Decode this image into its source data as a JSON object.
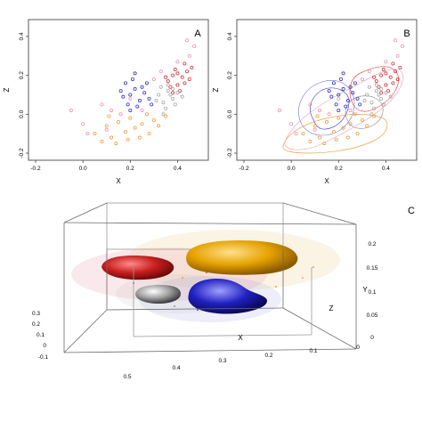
{
  "colors": {
    "red": "#d9353a",
    "blue": "#3535c8",
    "gray": "#a9a9a9",
    "orange": "#f0a040",
    "pink": "#e39ab8",
    "axis": "#555555",
    "box": "#8a8a8a"
  },
  "chart_data": [
    {
      "type": "scatter",
      "panel_label": "A",
      "xlabel": "X",
      "ylabel": "Z",
      "xlim": [
        -0.2,
        0.5
      ],
      "ylim": [
        -0.2,
        0.45
      ],
      "xticks": [
        "-0.2",
        "0.0",
        "0.2",
        "0.4"
      ],
      "yticks": [
        "-0.2",
        "0.0",
        "0.2",
        "0.4"
      ],
      "xtick_values": [
        -0.2,
        0.0,
        0.2,
        0.4
      ],
      "ytick_values": [
        -0.2,
        0.0,
        0.2,
        0.4
      ],
      "grid": false,
      "series": [
        {
          "color": "red",
          "points": [
            [
              0.36,
              0.17
            ],
            [
              0.38,
              0.2
            ],
            [
              0.4,
              0.15
            ],
            [
              0.42,
              0.19
            ],
            [
              0.44,
              0.22
            ],
            [
              0.39,
              0.23
            ],
            [
              0.41,
              0.12
            ],
            [
              0.43,
              0.16
            ],
            [
              0.45,
              0.18
            ],
            [
              0.37,
              0.14
            ],
            [
              0.46,
              0.24
            ],
            [
              0.4,
              0.21
            ],
            [
              0.35,
              0.19
            ],
            [
              0.43,
              0.26
            ],
            [
              0.38,
              0.11
            ]
          ]
        },
        {
          "color": "blue",
          "points": [
            [
              0.18,
              0.16
            ],
            [
              0.2,
              0.1
            ],
            [
              0.22,
              0.13
            ],
            [
              0.24,
              0.07
            ],
            [
              0.19,
              0.05
            ],
            [
              0.26,
              0.11
            ],
            [
              0.21,
              0.18
            ],
            [
              0.23,
              0.04
            ],
            [
              0.25,
              0.14
            ],
            [
              0.17,
              0.09
            ],
            [
              0.28,
              0.08
            ],
            [
              0.2,
              0.02
            ],
            [
              0.27,
              0.16
            ],
            [
              0.22,
              0.21
            ],
            [
              0.29,
              0.05
            ],
            [
              0.16,
              0.12
            ]
          ]
        },
        {
          "color": "gray",
          "points": [
            [
              0.32,
              0.1
            ],
            [
              0.34,
              0.06
            ],
            [
              0.36,
              0.12
            ],
            [
              0.38,
              0.08
            ],
            [
              0.33,
              0.14
            ],
            [
              0.35,
              0.03
            ],
            [
              0.37,
              0.1
            ],
            [
              0.39,
              0.05
            ],
            [
              0.31,
              0.07
            ],
            [
              0.36,
              0.15
            ],
            [
              0.4,
              0.11
            ],
            [
              0.34,
              0.0
            ],
            [
              0.38,
              0.13
            ],
            [
              0.42,
              0.09
            ]
          ]
        },
        {
          "color": "orange",
          "points": [
            [
              0.05,
              -0.1
            ],
            [
              0.1,
              -0.06
            ],
            [
              0.12,
              -0.12
            ],
            [
              0.15,
              -0.04
            ],
            [
              0.18,
              -0.09
            ],
            [
              0.2,
              -0.02
            ],
            [
              0.22,
              -0.07
            ],
            [
              0.25,
              -0.05
            ],
            [
              0.28,
              -0.1
            ],
            [
              0.3,
              -0.03
            ],
            [
              0.08,
              -0.14
            ],
            [
              0.14,
              -0.15
            ],
            [
              0.24,
              -0.12
            ],
            [
              0.32,
              -0.06
            ],
            [
              0.35,
              -0.01
            ],
            [
              0.11,
              -0.01
            ],
            [
              0.19,
              -0.13
            ],
            [
              0.27,
              0.0
            ]
          ]
        },
        {
          "color": "pink",
          "points": [
            [
              -0.05,
              0.02
            ],
            [
              0.0,
              -0.05
            ],
            [
              0.08,
              0.05
            ],
            [
              0.12,
              0.02
            ],
            [
              0.16,
              0.0
            ],
            [
              0.3,
              0.18
            ],
            [
              0.33,
              0.22
            ],
            [
              0.45,
              0.3
            ],
            [
              0.47,
              0.35
            ],
            [
              0.44,
              0.38
            ],
            [
              0.1,
              -0.08
            ],
            [
              0.25,
              0.02
            ],
            [
              0.4,
              0.27
            ],
            [
              0.02,
              -0.1
            ],
            [
              0.2,
              0.08
            ]
          ]
        }
      ]
    },
    {
      "type": "scatter",
      "panel_label": "B",
      "xlabel": "X",
      "ylabel": "Z",
      "xlim": [
        -0.2,
        0.5
      ],
      "ylim": [
        -0.2,
        0.45
      ],
      "xticks": [
        "-0.2",
        "0.0",
        "0.2",
        "0.4"
      ],
      "yticks": [
        "-0.2",
        "0.0",
        "0.2",
        "0.4"
      ],
      "xtick_values": [
        -0.2,
        0.0,
        0.2,
        0.4
      ],
      "ytick_values": [
        -0.2,
        0.0,
        0.2,
        0.4
      ],
      "grid": false,
      "contours": true,
      "series_same_as_panel": "A"
    },
    {
      "type": "3d-density",
      "panel_label": "C",
      "xlabel": "X",
      "ylabel": "Y",
      "zlabel": "Z",
      "x_ticks": [
        "0.5",
        "0.4",
        "0.3",
        "0.2",
        "0.1",
        "0"
      ],
      "y_ticks": [
        "0",
        "0.05",
        "0.1",
        "0.15",
        "0.2"
      ],
      "z_ticks": [
        "0.3",
        "0.2",
        "0.1",
        "0",
        "-0.1"
      ],
      "blobs": [
        "red",
        "orange",
        "gray",
        "blue"
      ]
    }
  ]
}
